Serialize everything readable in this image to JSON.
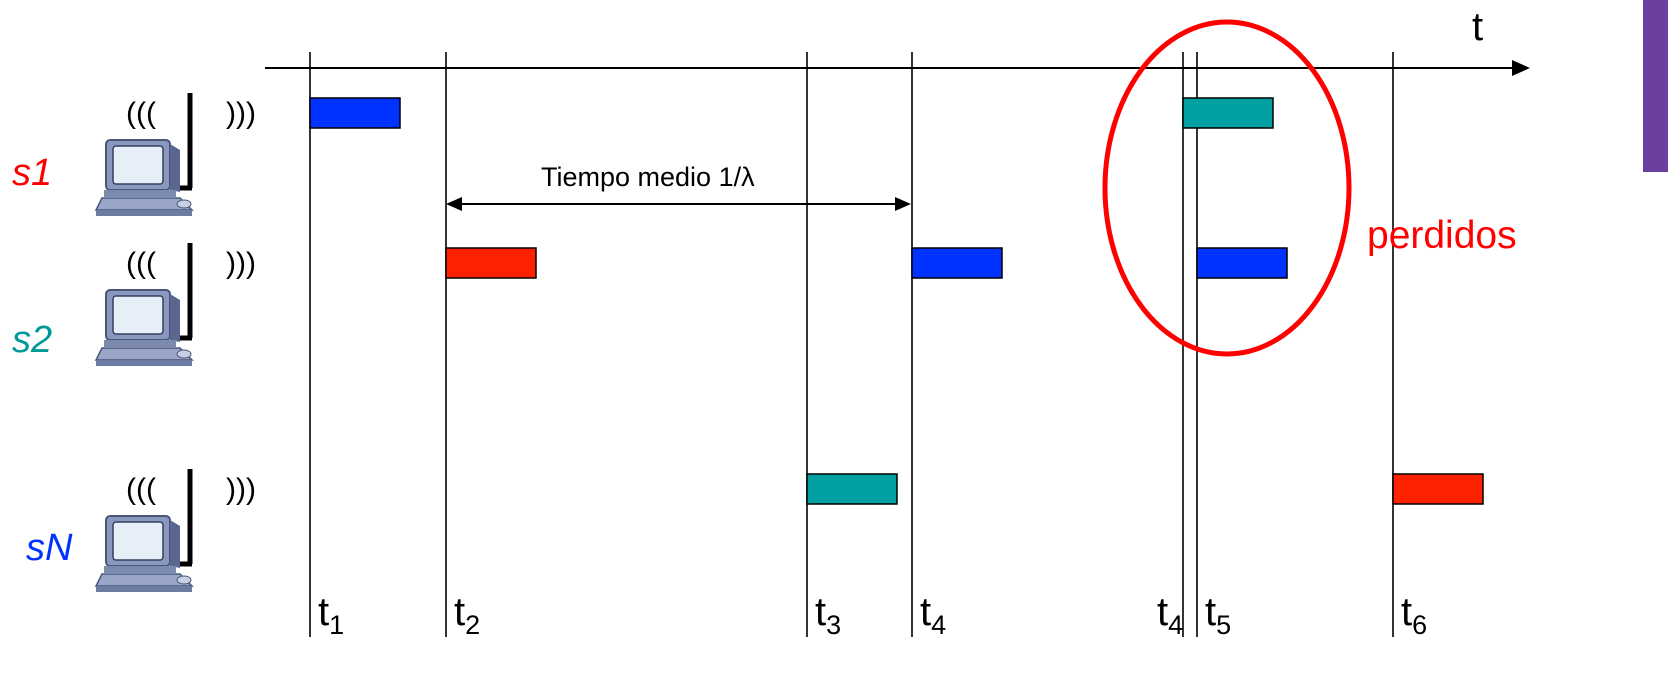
{
  "axis": {
    "label": "t"
  },
  "stations": [
    {
      "id": "s1",
      "label": "s1",
      "color": "#ff0000",
      "waves_left": "(((",
      "waves_right": ")))"
    },
    {
      "id": "s2",
      "label": "s2",
      "color": "#009999",
      "waves_left": "(((",
      "waves_right": ")))"
    },
    {
      "id": "sN",
      "label": "sN",
      "color": "#0033ff",
      "waves_left": "(((",
      "waves_right": ")))"
    }
  ],
  "time_marks": [
    {
      "id": "t1",
      "base": "t",
      "sub": "1"
    },
    {
      "id": "t2",
      "base": "t",
      "sub": "2"
    },
    {
      "id": "t3",
      "base": "t",
      "sub": "3"
    },
    {
      "id": "t4",
      "base": "t",
      "sub": "4"
    },
    {
      "id": "t4b",
      "base": "t",
      "sub": "4"
    },
    {
      "id": "t5",
      "base": "t",
      "sub": "5"
    },
    {
      "id": "t6",
      "base": "t",
      "sub": "6"
    }
  ],
  "frames": [
    {
      "station": "s1",
      "start": "t1",
      "color": "#0033ff"
    },
    {
      "station": "s1",
      "start": "t4b",
      "color": "#00a0a0"
    },
    {
      "station": "s2",
      "start": "t2",
      "color": "#ff2200"
    },
    {
      "station": "s2",
      "start": "t4",
      "color": "#0033ff"
    },
    {
      "station": "s2",
      "start": "t5",
      "color": "#0033ff"
    },
    {
      "station": "sN",
      "start": "t3",
      "color": "#00a0a0"
    },
    {
      "station": "sN",
      "start": "t6",
      "color": "#ff2200"
    }
  ],
  "interval": {
    "label": "Tiempo medio 1/λ",
    "from": "t2",
    "to": "t4"
  },
  "collision": {
    "label": "perdidos",
    "color": "#ff0000"
  },
  "colors": {
    "line": "#000000",
    "accent_bar": "#6a3fa0"
  }
}
